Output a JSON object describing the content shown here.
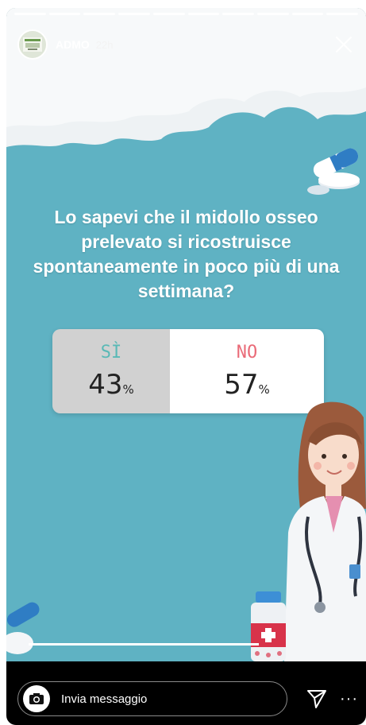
{
  "story": {
    "account": "ADMO",
    "time": "22h",
    "progress_segments": 10,
    "progress_done": 10
  },
  "poll": {
    "question": "Lo sapevi che il midollo osseo prelevato si ricostruisce spontaneamente in poco più di una settimana?",
    "options": [
      {
        "label": "SÌ",
        "percent": "43",
        "unit": "%"
      },
      {
        "label": "NO",
        "percent": "57",
        "unit": "%"
      }
    ]
  },
  "reply": {
    "placeholder": "Invia messaggio"
  },
  "icons": {
    "close": "close-icon",
    "camera": "camera-icon",
    "send": "send-icon",
    "more": "more-icon"
  },
  "colors": {
    "background": "#5fb2c3",
    "yes": "#5ab9b6",
    "no": "#ea6b78"
  }
}
